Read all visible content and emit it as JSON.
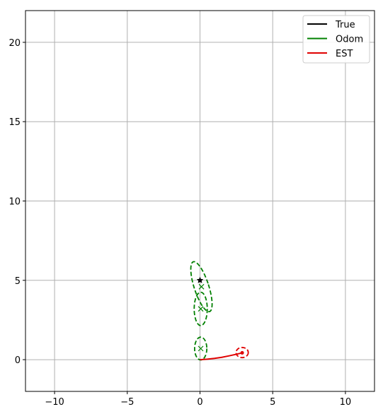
{
  "chart_data": {
    "type": "line",
    "title": "",
    "xlabel": "",
    "ylabel": "",
    "xlim": [
      -12,
      12
    ],
    "ylim": [
      -2,
      22
    ],
    "grid": true,
    "legend_position": "top-right",
    "xticks": [
      -10,
      -5,
      0,
      5,
      10
    ],
    "yticks": [
      0,
      5,
      10,
      15,
      20
    ],
    "xtick_labels": [
      "−10",
      "−5",
      "0",
      "5",
      "10"
    ],
    "ytick_labels": [
      "0",
      "5",
      "10",
      "15",
      "20"
    ],
    "series": [
      {
        "name": "True",
        "color": "#000000",
        "x": [
          0.0
        ],
        "y": [
          5.0
        ],
        "marker": "star"
      },
      {
        "name": "Odom",
        "color": "#008000",
        "marks": [
          {
            "x": 0.05,
            "y": 0.7
          },
          {
            "x": 0.05,
            "y": 3.2
          },
          {
            "x": 0.1,
            "y": 4.6
          }
        ],
        "ellipses": [
          {
            "cx": 0.05,
            "cy": 0.7,
            "rx": 0.42,
            "ry": 0.72,
            "angle": 0
          },
          {
            "cx": 0.05,
            "cy": 3.2,
            "rx": 0.45,
            "ry": 1.05,
            "angle": 0
          },
          {
            "cx": 0.1,
            "cy": 4.6,
            "rx": 0.5,
            "ry": 1.65,
            "angle": 18
          }
        ]
      },
      {
        "name": "EST",
        "color": "#e00000",
        "x": [
          0.0,
          0.5,
          1.0,
          1.5,
          2.0,
          2.5,
          2.9
        ],
        "y": [
          0.0,
          0.03,
          0.08,
          0.15,
          0.24,
          0.34,
          0.43
        ],
        "ellipses": [
          {
            "cx": 2.9,
            "cy": 0.45,
            "rx": 0.42,
            "ry": 0.32,
            "angle": 0
          }
        ],
        "end_marker": {
          "x": 2.9,
          "y": 0.43
        }
      }
    ]
  }
}
